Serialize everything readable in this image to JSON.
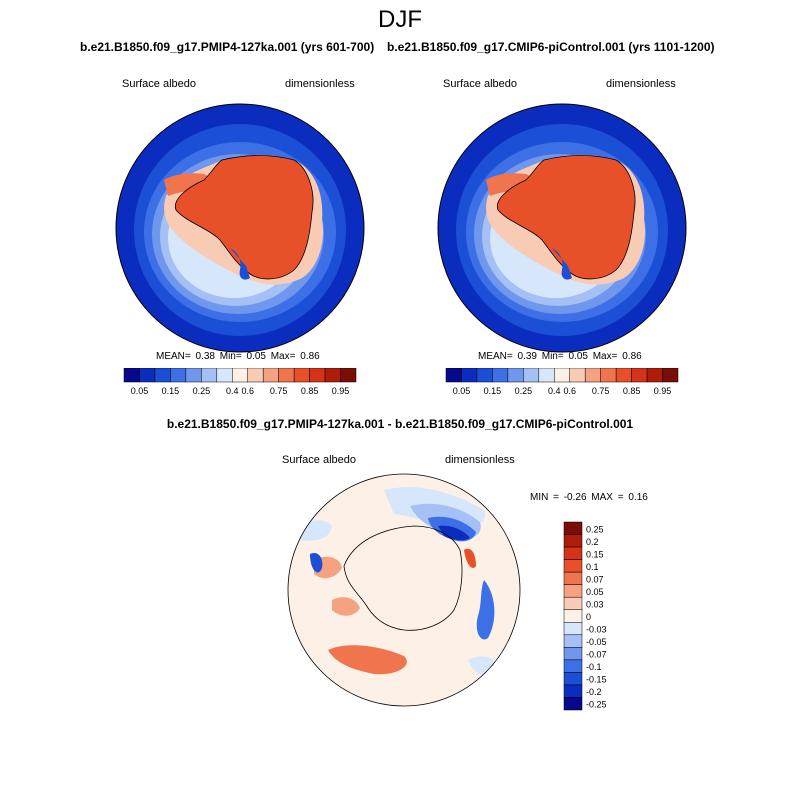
{
  "figure": {
    "title": "DJF",
    "difference_title": "b.e21.B1850.f09_g17.PMIP4-127ka.001 - b.e21.B1850.f09_g17.CMIP6-piControl.001"
  },
  "panels": [
    {
      "case": "b.e21.B1850.f09_g17.PMIP4-127ka.001 (yrs 601-700)",
      "variable": "Surface albedo",
      "units": "dimensionless",
      "stats": "MEAN=   0.38  Min=   0.05  Max=   0.86"
    },
    {
      "case": "b.e21.B1850.f09_g17.CMIP6-piControl.001 (yrs 1101-1200)",
      "variable": "Surface albedo",
      "units": "dimensionless",
      "stats": "MEAN=   0.39  Min=   0.05  Max=   0.86"
    }
  ],
  "difference": {
    "variable": "Surface albedo",
    "units": "dimensionless",
    "stats": "MIN =  -0.26 MAX =   0.16"
  },
  "colorbar_main": {
    "labels": [
      "0.05",
      "0.15",
      "0.25",
      "0.4",
      "0.6",
      "0.75",
      "0.85",
      "0.95"
    ],
    "colors": [
      "#08088c",
      "#0a2dbf",
      "#1b4fd6",
      "#3d70e6",
      "#6f97ee",
      "#a5c0f5",
      "#d6e6fb",
      "#fdf0e6",
      "#f8cbb4",
      "#f5a283",
      "#f0744e",
      "#e8502a",
      "#d53216",
      "#b01c0a",
      "#7a0d05"
    ]
  },
  "colorbar_diff": {
    "labels": [
      "0.25",
      "0.2",
      "0.15",
      "0.1",
      "0.07",
      "0.05",
      "0.03",
      "0",
      "-0.03",
      "-0.05",
      "-0.07",
      "-0.1",
      "-0.15",
      "-0.2",
      "-0.25"
    ],
    "colors": [
      "#7a0d05",
      "#b01c0a",
      "#d53216",
      "#e8502a",
      "#f0744e",
      "#f5a283",
      "#f8cbb4",
      "#fdf0e6",
      "#d6e6fb",
      "#a5c0f5",
      "#6f97ee",
      "#3d70e6",
      "#1b4fd6",
      "#0a2dbf",
      "#08088c"
    ]
  }
}
